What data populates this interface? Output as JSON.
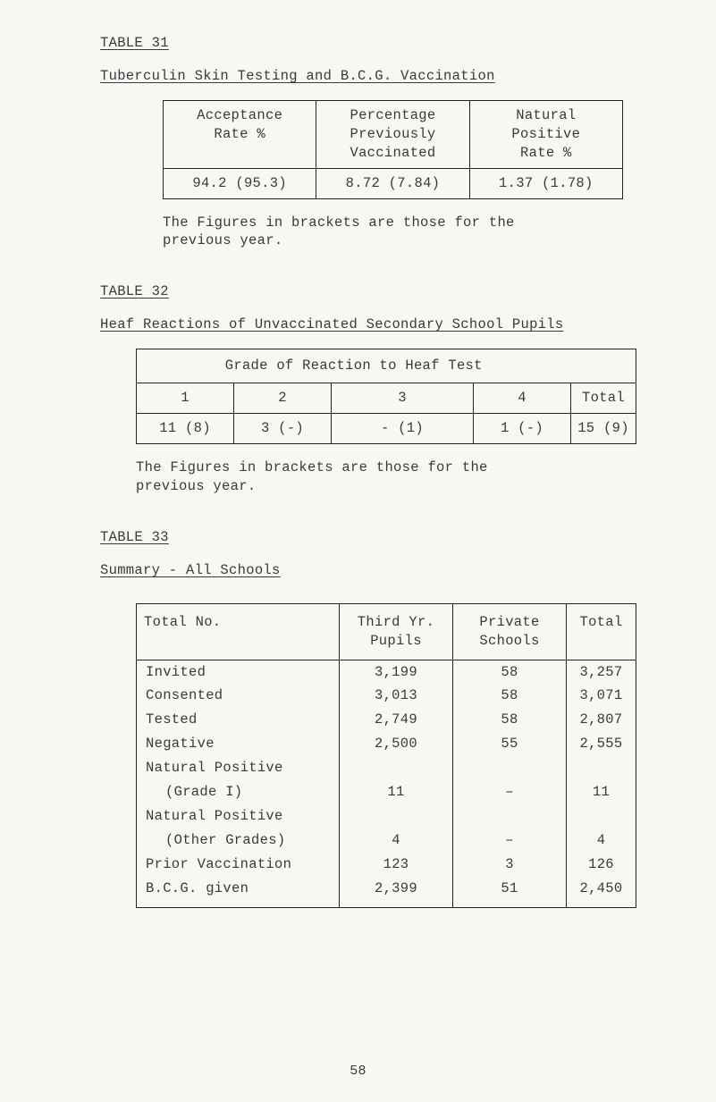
{
  "page_number": "58",
  "t31": {
    "label": "TABLE 31",
    "caption": "Tuberculin Skin Testing and B.C.G. Vaccination",
    "headers": {
      "c1a": "Acceptance",
      "c1b": "Rate  %",
      "c2a": "Percentage",
      "c2b": "Previously",
      "c2c": "Vaccinated",
      "c3a": "Natural",
      "c3b": "Positive",
      "c3c": "Rate  %"
    },
    "row": {
      "c1": "94.2 (95.3)",
      "c2": "8.72 (7.84)",
      "c3": "1.37 (1.78)"
    },
    "note1": "The Figures in brackets are those for the",
    "note2": "previous year."
  },
  "t32": {
    "label": "TABLE 32",
    "caption": "Heaf Reactions of Unvaccinated Secondary School Pupils",
    "title": "Grade of Reaction to Heaf Test",
    "cols": {
      "c1": "1",
      "c2": "2",
      "c3": "3",
      "c4": "4",
      "c5": "Total"
    },
    "row": {
      "c1": "11 (8)",
      "c2": "3 (-)",
      "c3": "- (1)",
      "c4": "1 (-)",
      "c5": "15 (9)"
    },
    "note1": "The Figures in brackets are those for the",
    "note2": "previous year."
  },
  "t33": {
    "label": "TABLE 33",
    "caption": "Summary - All Schools",
    "headers": {
      "c1": "Total No.",
      "c2a": "Third Yr.",
      "c2b": "Pupils",
      "c3a": "Private",
      "c3b": "Schools",
      "c4": "Total"
    },
    "rows": [
      {
        "label": "Invited",
        "c2": "3,199",
        "c3": "58",
        "c4": "3,257"
      },
      {
        "label": "Consented",
        "c2": "3,013",
        "c3": "58",
        "c4": "3,071"
      },
      {
        "label": "Tested",
        "c2": "2,749",
        "c3": "58",
        "c4": "2,807"
      },
      {
        "label": "Negative",
        "c2": "2,500",
        "c3": "55",
        "c4": "2,555"
      },
      {
        "label": "Natural Positive",
        "c2": "",
        "c3": "",
        "c4": ""
      },
      {
        "label": "(Grade I)",
        "indent": true,
        "c2": "11",
        "c3": "–",
        "c4": "11"
      },
      {
        "label": "Natural Positive",
        "c2": "",
        "c3": "",
        "c4": ""
      },
      {
        "label": "(Other Grades)",
        "indent": true,
        "c2": "4",
        "c3": "–",
        "c4": "4"
      },
      {
        "label": "Prior Vaccination",
        "c2": "123",
        "c3": "3",
        "c4": "126"
      },
      {
        "label": "B.C.G. given",
        "c2": "2,399",
        "c3": "51",
        "c4": "2,450"
      }
    ]
  }
}
